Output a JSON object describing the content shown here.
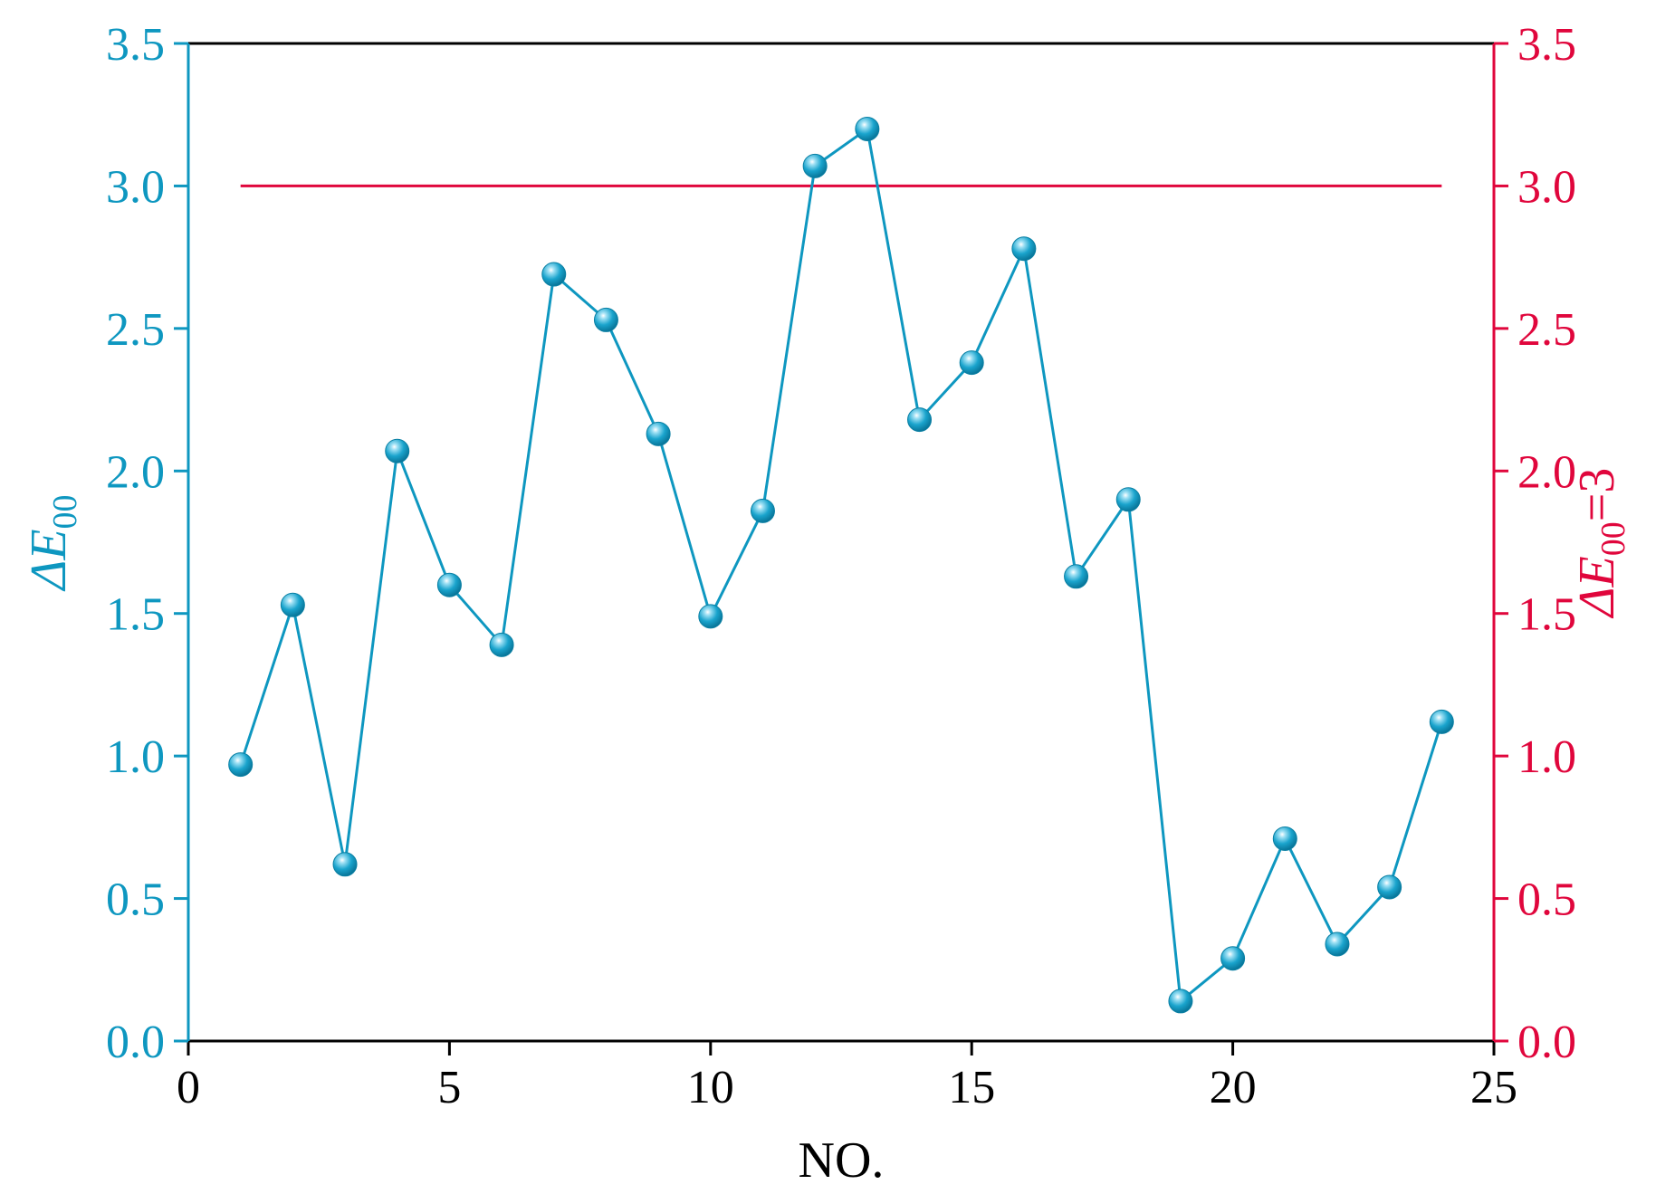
{
  "chart_data": {
    "type": "line",
    "xlabel": "NO.",
    "ylabel_left": {
      "prefix": "ΔE",
      "sub": "00"
    },
    "ylabel_right": {
      "prefix": "ΔE",
      "sub": "00",
      "suffix": "=3"
    },
    "xlim": [
      0,
      25
    ],
    "ylim": [
      0,
      3.5
    ],
    "ylim_right": [
      0,
      3.5
    ],
    "x_ticks": [
      0,
      5,
      10,
      15,
      20,
      25
    ],
    "x_tick_labels": [
      "0",
      "5",
      "10",
      "15",
      "20",
      "25"
    ],
    "y_ticks": [
      0,
      0.5,
      1.0,
      1.5,
      2.0,
      2.5,
      3.0,
      3.5
    ],
    "y_tick_labels": [
      "0.0",
      "0.5",
      "1.0",
      "1.5",
      "2.0",
      "2.5",
      "3.0",
      "3.5"
    ],
    "series": [
      {
        "x": [
          1,
          2,
          3,
          4,
          5,
          6,
          7,
          8,
          9,
          10,
          11,
          12,
          13,
          14,
          15,
          16,
          17,
          18,
          19,
          20,
          21,
          22,
          23,
          24
        ],
        "y": [
          0.97,
          1.53,
          0.62,
          2.07,
          1.6,
          1.39,
          2.69,
          2.53,
          2.13,
          1.49,
          1.86,
          3.07,
          3.2,
          2.18,
          2.38,
          2.78,
          1.63,
          1.9,
          0.14,
          0.29,
          0.71,
          0.34,
          0.54,
          1.12
        ],
        "color": "#0e97c0",
        "marker": "sphere",
        "axis": "left"
      }
    ],
    "reference_line": {
      "y": 3,
      "x_range": [
        1,
        24
      ],
      "color": "#e0063c",
      "axis": "right"
    },
    "grid": false,
    "legend": "none"
  },
  "colors": {
    "left_axis": "#0e97c0",
    "right_axis": "#e0063c",
    "frame": "#000000"
  }
}
